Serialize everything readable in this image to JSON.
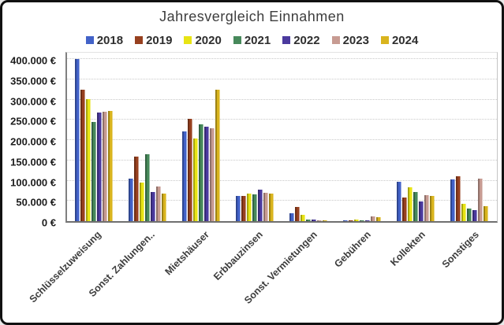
{
  "chart_data": {
    "type": "bar",
    "title": "Jahresvergleich Einnahmen",
    "legend_position": "top",
    "grid": "horizontal-dotted",
    "currency": "€",
    "ylim": [
      0,
      400000
    ],
    "y_tick_step": 50000,
    "y_ticks": [
      "0 €",
      "50.000 €",
      "100.000 €",
      "150.000 €",
      "200.000 €",
      "250.000 €",
      "300.000 €",
      "350.000 €",
      "400.000 €"
    ],
    "categories": [
      "Schlüsselzuweisung",
      "Sonst. Zahlungen..",
      "Mietshäuser",
      "Erbbauzinsen",
      "Sonst. Vermietungen",
      "Gebühren",
      "Kollekten",
      "Sonstiges"
    ],
    "series": [
      {
        "name": "2018",
        "color": "#4262c8",
        "values": [
          400000,
          105000,
          222000,
          63000,
          20000,
          1500,
          98000,
          103000
        ]
      },
      {
        "name": "2019",
        "color": "#97401f",
        "values": [
          325000,
          160000,
          253000,
          63000,
          35000,
          2500,
          58000,
          110000
        ]
      },
      {
        "name": "2020",
        "color": "#e8e414",
        "values": [
          300000,
          95000,
          203000,
          68000,
          15000,
          3500,
          83000,
          43000
        ]
      },
      {
        "name": "2021",
        "color": "#47895b",
        "values": [
          245000,
          165000,
          238000,
          66000,
          4000,
          2000,
          71000,
          32000
        ]
      },
      {
        "name": "2022",
        "color": "#4b3a9e",
        "values": [
          268000,
          72000,
          233000,
          77000,
          4000,
          1500,
          48000,
          28000
        ]
      },
      {
        "name": "2023",
        "color": "#c79b92",
        "values": [
          270000,
          85000,
          230000,
          69000,
          2000,
          12000,
          64000,
          105000
        ]
      },
      {
        "name": "2024",
        "color": "#d9b41e",
        "values": [
          272000,
          68000,
          325000,
          68000,
          2000,
          10000,
          62000,
          36000
        ]
      }
    ]
  }
}
